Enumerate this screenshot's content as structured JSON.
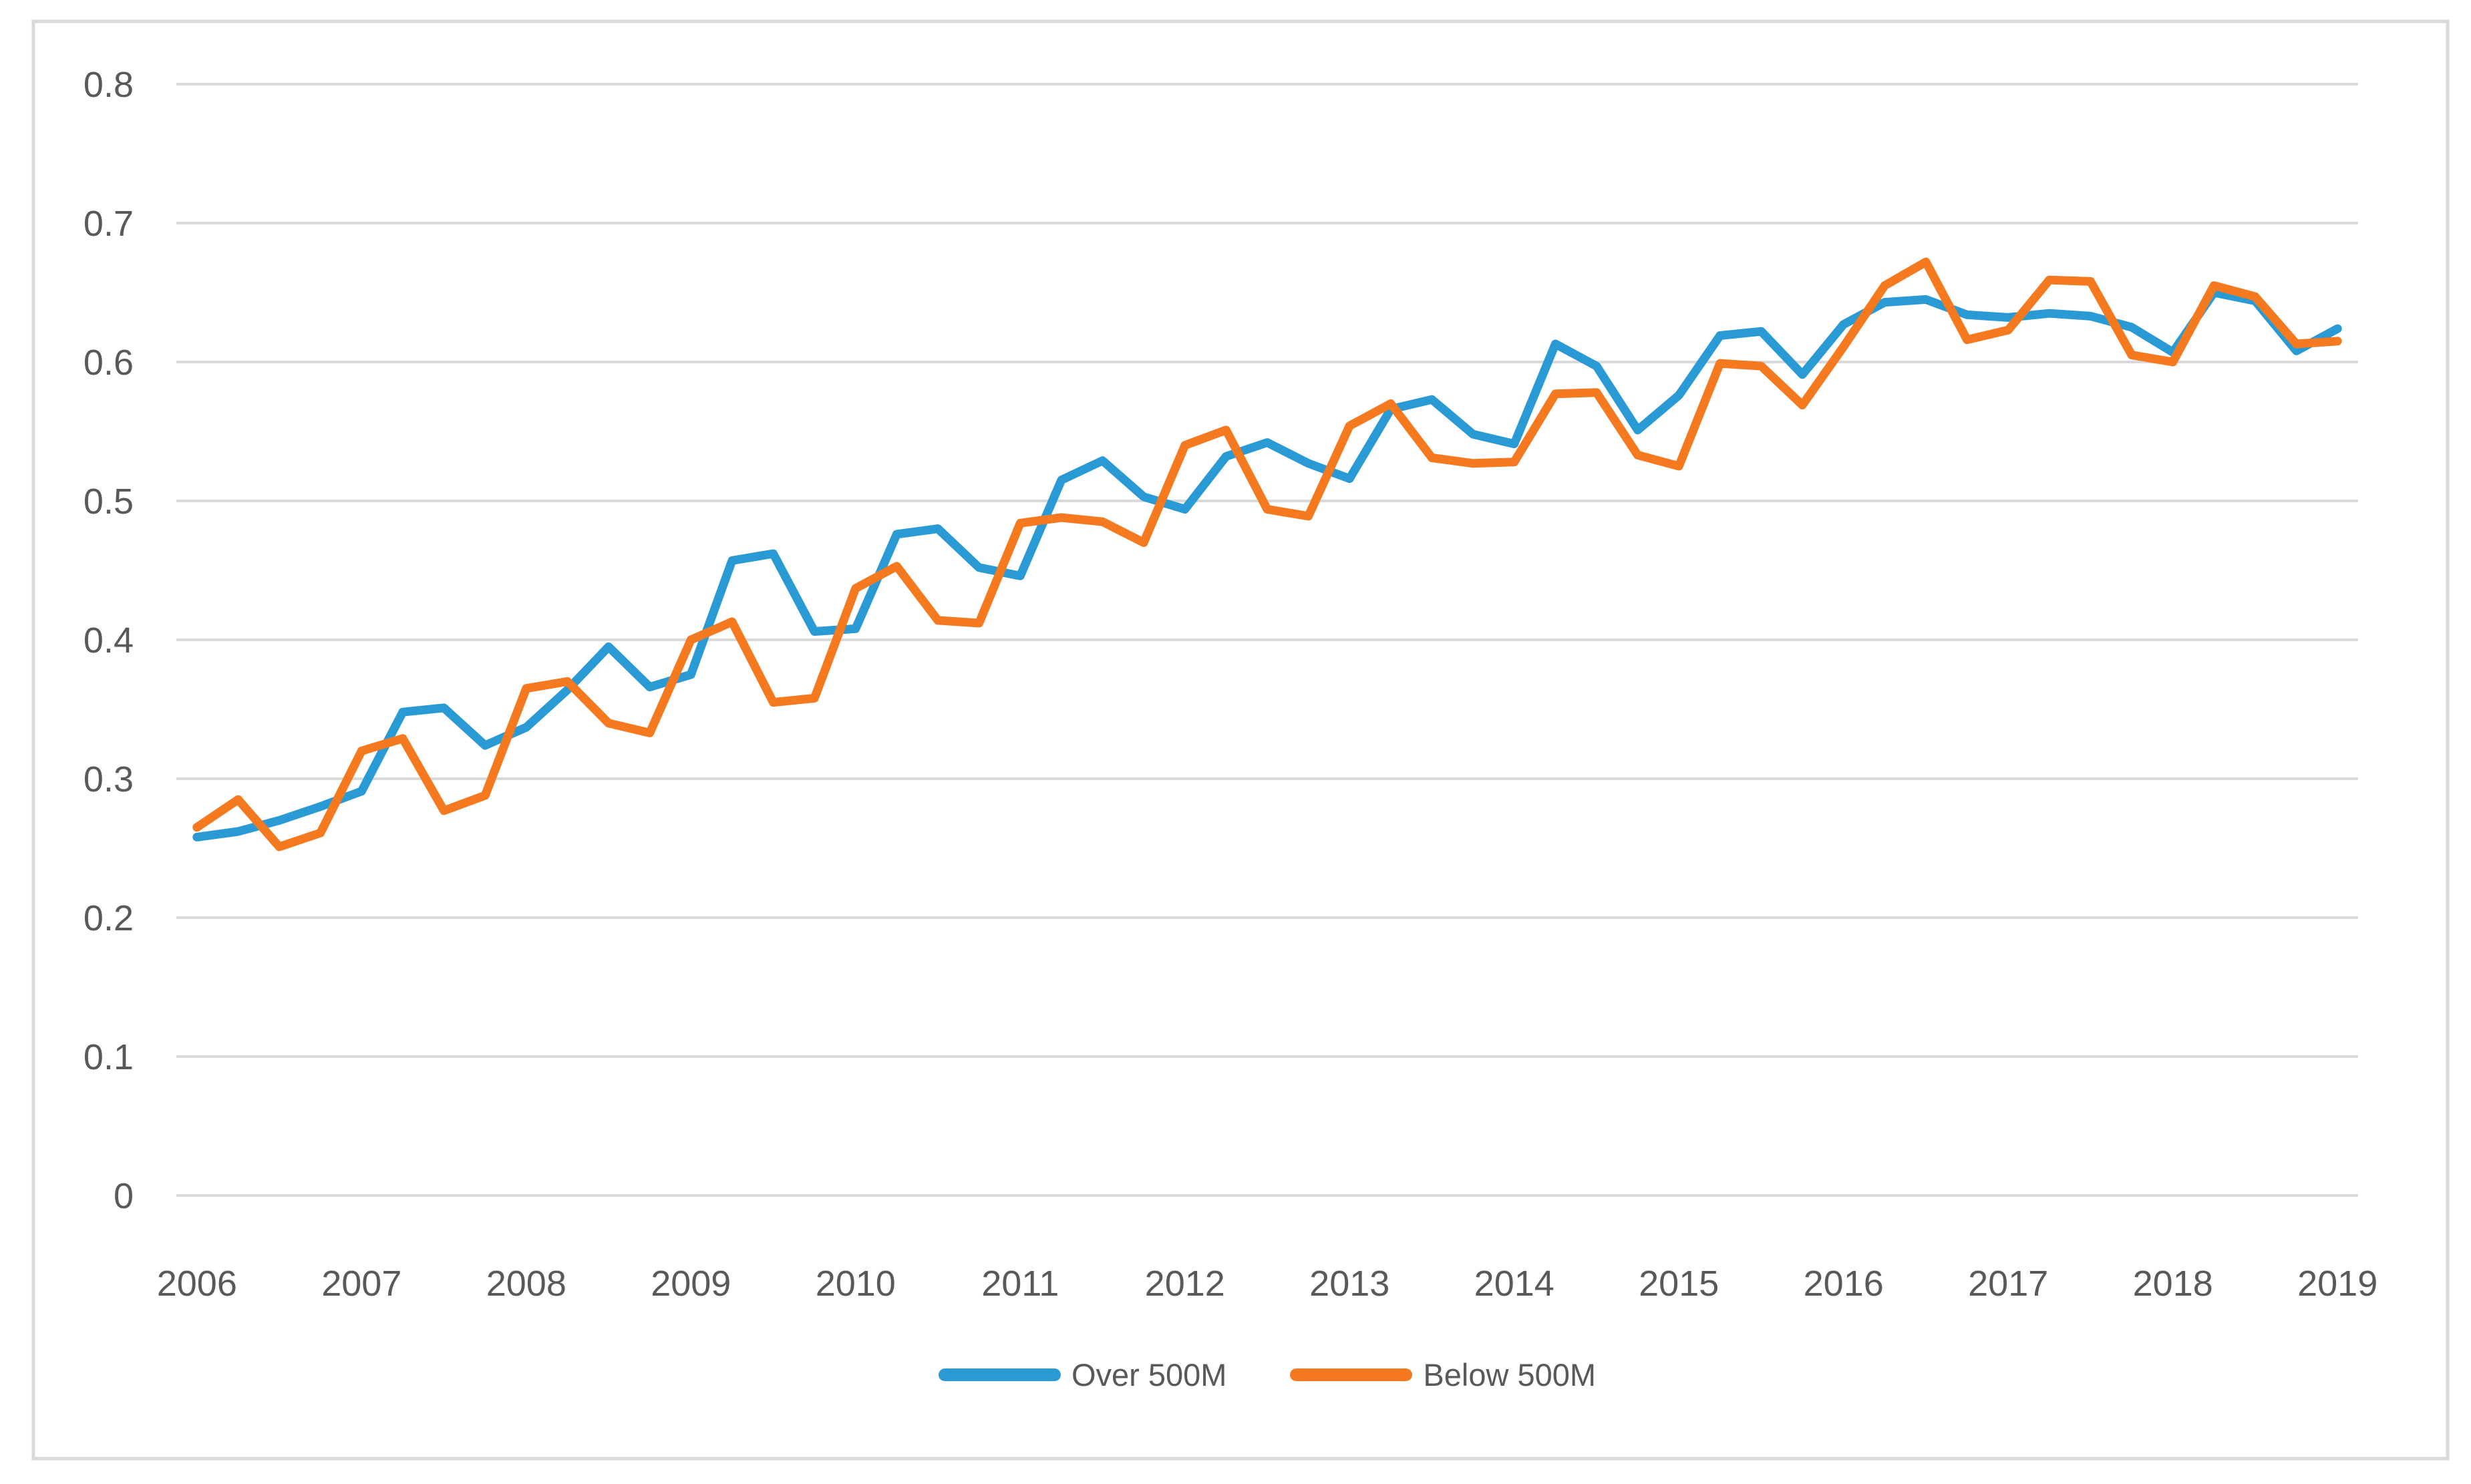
{
  "page": {
    "background": "#FFFFFF"
  },
  "chart_data": {
    "type": "line",
    "title": "",
    "xlabel": "",
    "ylabel": "",
    "categories": [
      "2006",
      "2007",
      "2008",
      "2009",
      "2010",
      "2011",
      "2012",
      "2013",
      "2014",
      "2015",
      "2016",
      "2017",
      "2018",
      "2019"
    ],
    "x_granularity": "quarterly",
    "x_start": "2006 Q1",
    "x_end": "2019 Q1",
    "points_per_year": 4,
    "ylim": [
      0,
      0.8
    ],
    "y_tick_labels": [
      "0.8",
      "0.7",
      "0.6",
      "0.5",
      "0.4",
      "0.3",
      "0.2",
      "0.1",
      "0"
    ],
    "grid": true,
    "legend_position": "bottom-center",
    "axis_text_color": "#595959",
    "gridline_color": "#D9D9D9",
    "frame_border_color": "#D9D9D9",
    "series": [
      {
        "name": "Over 500M",
        "color": "#2A9AD5",
        "values": [
          0.258,
          0.262,
          0.27,
          0.28,
          0.291,
          0.348,
          0.351,
          0.324,
          0.337,
          0.364,
          0.395,
          0.366,
          0.375,
          0.457,
          0.462,
          0.406,
          0.408,
          0.476,
          0.48,
          0.452,
          0.446,
          0.515,
          0.529,
          0.503,
          0.494,
          0.532,
          0.542,
          0.527,
          0.516,
          0.566,
          0.573,
          0.548,
          0.541,
          0.613,
          0.597,
          0.551,
          0.576,
          0.619,
          0.622,
          0.591,
          0.627,
          0.643,
          0.645,
          0.634,
          0.632,
          0.635,
          0.633,
          0.625,
          0.607,
          0.65,
          0.644,
          0.608,
          0.624
        ]
      },
      {
        "name": "Below 500M",
        "color": "#F5791F",
        "values": [
          0.265,
          0.285,
          0.251,
          0.261,
          0.32,
          0.329,
          0.277,
          0.288,
          0.365,
          0.37,
          0.34,
          0.333,
          0.4,
          0.413,
          0.355,
          0.358,
          0.437,
          0.453,
          0.414,
          0.412,
          0.484,
          0.488,
          0.485,
          0.47,
          0.54,
          0.551,
          0.494,
          0.489,
          0.554,
          0.57,
          0.531,
          0.527,
          0.528,
          0.577,
          0.578,
          0.533,
          0.525,
          0.599,
          0.597,
          0.569,
          0.611,
          0.655,
          0.672,
          0.616,
          0.623,
          0.659,
          0.658,
          0.605,
          0.6,
          0.655,
          0.647,
          0.613,
          0.615
        ]
      }
    ]
  }
}
